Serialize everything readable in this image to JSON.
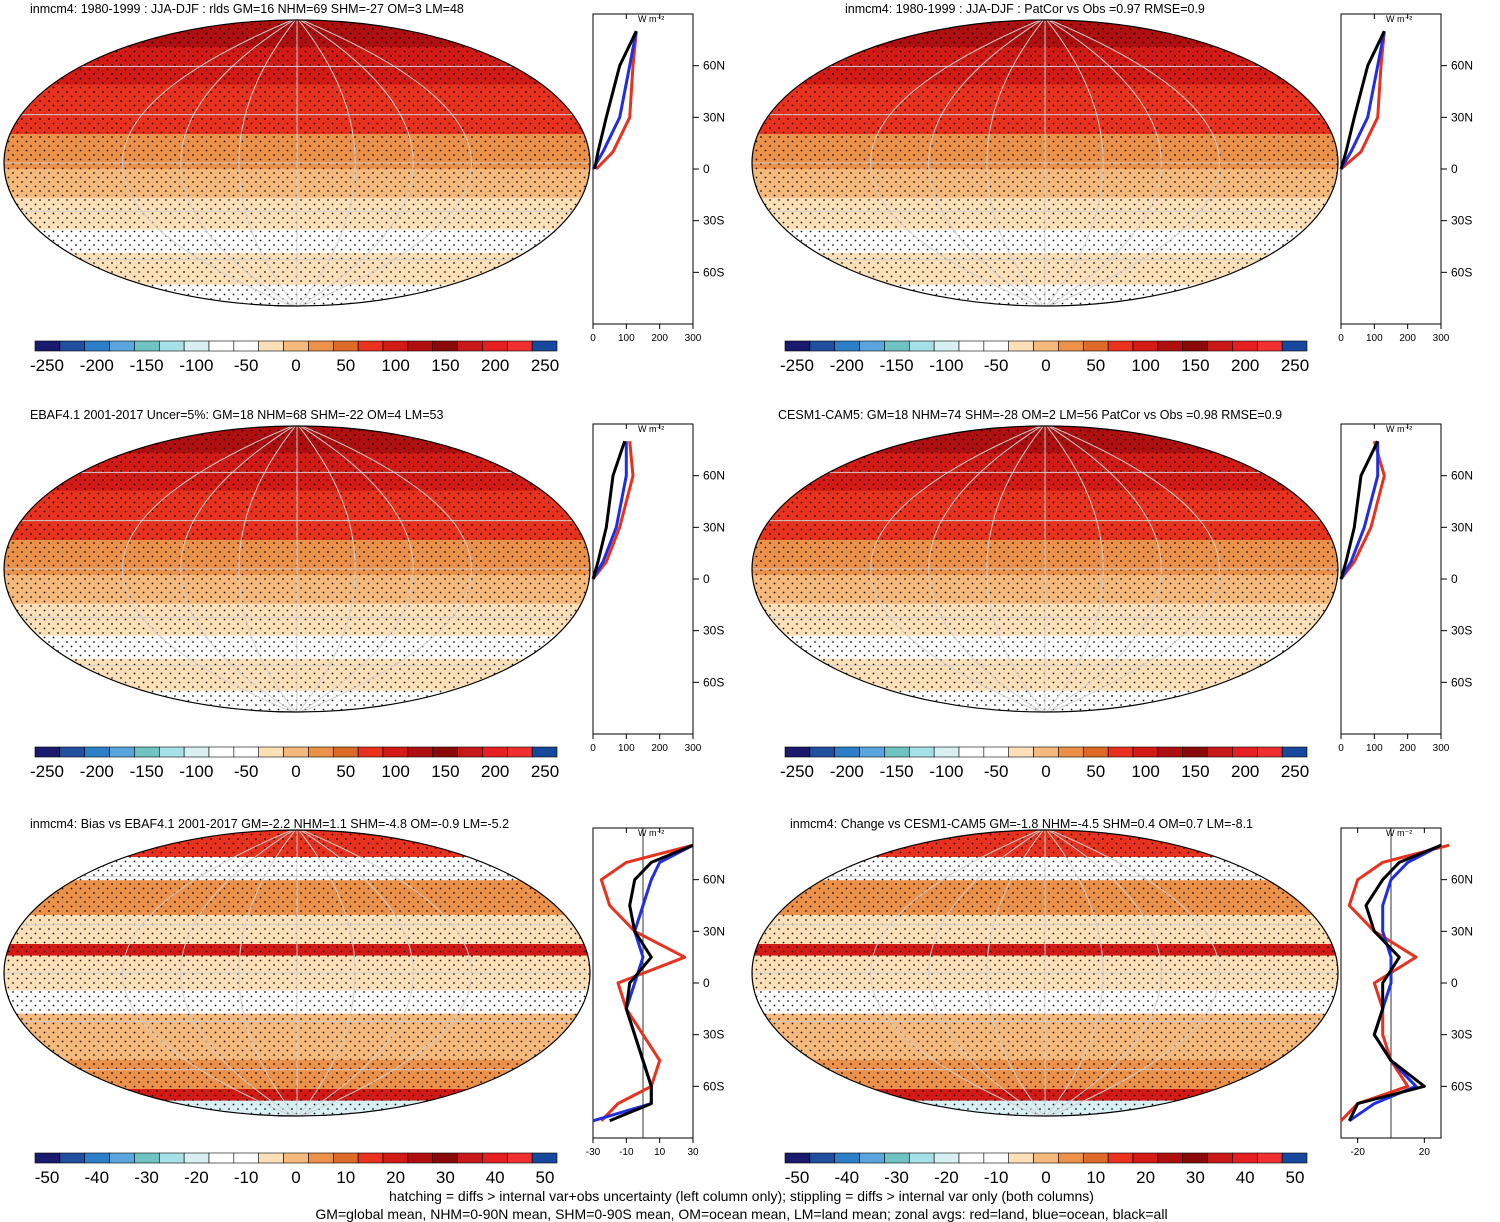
{
  "colors": {
    "scale": [
      "#1a1a6e",
      "#1f4f9e",
      "#2c7fc7",
      "#5aa5dd",
      "#6fc3c3",
      "#a8e0e8",
      "#d8f0f4",
      "#ffffff",
      "#ffffff",
      "#fde0b8",
      "#f6b97c",
      "#ec914a",
      "#dd6a26",
      "#e8321e",
      "#d41a14",
      "#b00f0f",
      "#8a0a0a",
      "#c81818",
      "#e62020",
      "#f03030",
      "#17489c"
    ],
    "land_line": "#e8321e",
    "ocean_line": "#1f2fe0",
    "all_line": "#000000"
  },
  "footer": {
    "line1": "hatching = diffs > internal var+obs uncertainty (left column only); stippling = diffs > internal var only (both columns)",
    "line2": "GM=global mean, NHM=0-90N mean, SHM=0-90S mean, OM=ocean mean, LM=land mean; zonal avgs: red=land, blue=ocean, black=all"
  },
  "panels": [
    {
      "title": "inmcm4: 1980-1999 : JJA-DJF : rlds GM=16 NHM=69 SHM=-27 OM=3 LM=48",
      "colorbar_labels": [
        "-250",
        "-200",
        "-150",
        "-100",
        "-50",
        "0",
        "50",
        "100",
        "150",
        "200",
        "250"
      ],
      "zonal": {
        "unit": "W m⁻²",
        "xticks": [
          "0",
          "100",
          "200",
          "300"
        ],
        "lat_labels": [
          "60N",
          "30N",
          "0",
          "30S",
          "60S"
        ]
      }
    },
    {
      "title": "inmcm4: 1980-1999 : JJA-DJF : PatCor vs Obs =0.97 RMSE=0.9",
      "colorbar_labels": [
        "-250",
        "-200",
        "-150",
        "-100",
        "-50",
        "0",
        "50",
        "100",
        "150",
        "200",
        "250"
      ],
      "zonal": {
        "unit": "W m⁻²",
        "xticks": [
          "0",
          "100",
          "200",
          "300"
        ],
        "lat_labels": [
          "60N",
          "30N",
          "0",
          "30S",
          "60S"
        ]
      }
    },
    {
      "title": "EBAF4.1 2001-2017 Uncer=5%: GM=18 NHM=68 SHM=-22 OM=4 LM=53",
      "colorbar_labels": [
        "-250",
        "-200",
        "-150",
        "-100",
        "-50",
        "0",
        "50",
        "100",
        "150",
        "200",
        "250"
      ],
      "zonal": {
        "unit": "W m⁻²",
        "xticks": [
          "0",
          "100",
          "200",
          "300"
        ],
        "lat_labels": [
          "60N",
          "30N",
          "0",
          "30S",
          "60S"
        ]
      }
    },
    {
      "title": "CESM1-CAM5: GM=18 NHM=74 SHM=-28 OM=2 LM=56 PatCor vs Obs =0.98 RMSE=0.9",
      "colorbar_labels": [
        "-250",
        "-200",
        "-150",
        "-100",
        "-50",
        "0",
        "50",
        "100",
        "150",
        "200",
        "250"
      ],
      "zonal": {
        "unit": "W m⁻²",
        "xticks": [
          "0",
          "100",
          "200",
          "300"
        ],
        "lat_labels": [
          "60N",
          "30N",
          "0",
          "30S",
          "60S"
        ]
      }
    },
    {
      "title": "inmcm4: Bias vs EBAF4.1 2001-2017 GM=-2.2 NHM=1.1 SHM=-4.8 OM=-0.9 LM=-5.2",
      "colorbar_labels": [
        "-50",
        "-40",
        "-30",
        "-20",
        "-10",
        "0",
        "10",
        "20",
        "30",
        "40",
        "50"
      ],
      "zonal": {
        "unit": "W m⁻²",
        "xticks": [
          "-30",
          "-10",
          "10",
          "30"
        ],
        "lat_labels": [
          "60N",
          "30N",
          "0",
          "30S",
          "60S"
        ]
      }
    },
    {
      "title": "inmcm4: Change vs CESM1-CAM5 GM=-1.8 NHM=-4.5 SHM=0.4 OM=0.7 LM=-8.1",
      "colorbar_labels": [
        "-50",
        "-40",
        "-30",
        "-20",
        "-10",
        "0",
        "10",
        "20",
        "30",
        "40",
        "50"
      ],
      "zonal": {
        "unit": "W m⁻²",
        "xticks": [
          "-20",
          "20"
        ],
        "lat_labels": [
          "60N",
          "30N",
          "0",
          "30S",
          "60S"
        ]
      }
    }
  ],
  "chart_data": [
    {
      "type": "heatmap",
      "title": "inmcm4: 1980-1999 : JJA-DJF : rlds GM=16 NHM=69 SHM=-27 OM=3 LM=48",
      "colorbar": {
        "ticks": [
          -250,
          -200,
          -150,
          -100,
          -50,
          0,
          50,
          100,
          150,
          200,
          250
        ]
      },
      "zonal_profile": {
        "xlim": [
          0,
          300
        ],
        "lat": [
          80,
          60,
          30,
          10,
          0,
          -30,
          -60,
          -80
        ],
        "series": [
          {
            "values": [
              130,
              120,
              110,
              60,
              10,
              null,
              null,
              null
            ]
          },
          {
            "values": [
              130,
              110,
              80,
              30,
              0,
              null,
              null,
              null
            ]
          },
          {
            "values": [
              130,
              80,
              40,
              15,
              5,
              null,
              null,
              null
            ]
          }
        ]
      }
    },
    {
      "type": "heatmap",
      "title": "inmcm4: 1980-1999 : JJA-DJF : PatCor vs Obs =0.97 RMSE=0.9",
      "colorbar": {
        "ticks": [
          -250,
          -200,
          -150,
          -100,
          -50,
          0,
          50,
          100,
          150,
          200,
          250
        ]
      },
      "zonal_profile": {
        "xlim": [
          0,
          300
        ],
        "lat": [
          80,
          60,
          30,
          10,
          0
        ],
        "series": [
          {
            "values": [
              130,
              120,
              110,
              60,
              0
            ]
          },
          {
            "values": [
              130,
              110,
              80,
              30,
              0
            ]
          },
          {
            "values": [
              130,
              80,
              40,
              15,
              0
            ]
          }
        ]
      }
    },
    {
      "type": "heatmap",
      "title": "EBAF4.1 2001-2017 Uncer=5%: GM=18 NHM=68 SHM=-22 OM=4 LM=53",
      "colorbar": {
        "ticks": [
          -250,
          -200,
          -150,
          -100,
          -50,
          0,
          50,
          100,
          150,
          200,
          250
        ]
      },
      "zonal_profile": {
        "xlim": [
          0,
          300
        ],
        "lat": [
          80,
          60,
          30,
          10,
          0
        ],
        "series": [
          {
            "values": [
              110,
              120,
              80,
              40,
              0
            ]
          },
          {
            "values": [
              100,
              100,
              70,
              30,
              0
            ]
          },
          {
            "values": [
              95,
              60,
              40,
              15,
              0
            ]
          }
        ]
      }
    },
    {
      "type": "heatmap",
      "title": "CESM1-CAM5: GM=18 NHM=74 SHM=-28 OM=2 LM=56 PatCor vs Obs =0.98 RMSE=0.9",
      "colorbar": {
        "ticks": [
          -250,
          -200,
          -150,
          -100,
          -50,
          0,
          50,
          100,
          150,
          200,
          250
        ]
      },
      "zonal_profile": {
        "xlim": [
          0,
          300
        ],
        "lat": [
          80,
          60,
          30,
          10,
          0
        ],
        "series": [
          {
            "values": [
              100,
              130,
              90,
              40,
              0
            ]
          },
          {
            "values": [
              110,
              110,
              70,
              30,
              0
            ]
          },
          {
            "values": [
              110,
              60,
              40,
              15,
              0
            ]
          }
        ]
      }
    },
    {
      "type": "heatmap",
      "title": "inmcm4: Bias vs EBAF4.1 2001-2017 GM=-2.2 NHM=1.1 SHM=-4.8 OM=-0.9 LM=-5.2",
      "colorbar": {
        "ticks": [
          -50,
          -40,
          -30,
          -20,
          -10,
          0,
          10,
          20,
          30,
          40,
          50
        ]
      },
      "zonal_profile": {
        "xlim": [
          -30,
          30
        ],
        "lat": [
          80,
          70,
          60,
          45,
          30,
          15,
          0,
          -15,
          -30,
          -45,
          -60,
          -70,
          -80
        ],
        "series": [
          {
            "values": [
              30,
              -10,
              -25,
              -20,
              -5,
              25,
              -15,
              -10,
              0,
              10,
              5,
              -15,
              -25
            ]
          },
          {
            "values": [
              30,
              10,
              5,
              0,
              -5,
              0,
              -5,
              -10,
              -5,
              0,
              5,
              5,
              -30
            ]
          },
          {
            "values": [
              30,
              5,
              -5,
              -8,
              -5,
              5,
              -8,
              -10,
              -5,
              0,
              5,
              5,
              -20
            ]
          }
        ]
      }
    },
    {
      "type": "heatmap",
      "title": "inmcm4: Change vs CESM1-CAM5 GM=-1.8 NHM=-4.5 SHM=0.4 OM=0.7 LM=-8.1",
      "colorbar": {
        "ticks": [
          -50,
          -40,
          -30,
          -20,
          -10,
          0,
          10,
          20,
          30,
          40,
          50
        ]
      },
      "zonal_profile": {
        "xlim": [
          -30,
          30
        ],
        "lat": [
          80,
          70,
          60,
          45,
          30,
          15,
          0,
          -15,
          -30,
          -45,
          -60,
          -70,
          -80
        ],
        "series": [
          {
            "values": [
              35,
              -5,
              -20,
              -25,
              -10,
              15,
              -10,
              -5,
              -5,
              0,
              10,
              -20,
              -30
            ]
          },
          {
            "values": [
              30,
              10,
              0,
              -5,
              -5,
              0,
              0,
              -5,
              -10,
              0,
              15,
              -10,
              -25
            ]
          },
          {
            "values": [
              30,
              5,
              -5,
              -15,
              -10,
              5,
              -5,
              -5,
              -10,
              0,
              20,
              -20,
              -25
            ]
          }
        ]
      }
    }
  ]
}
